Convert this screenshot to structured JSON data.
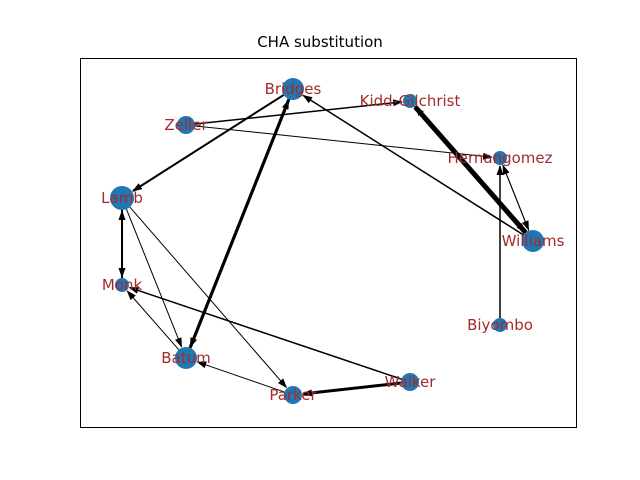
{
  "title": "CHA substitution",
  "colors": {
    "node": "#1f77b4",
    "label": "#a52a2a",
    "edge": "#000000",
    "frame": "#000000"
  },
  "nodes": [
    {
      "id": "Bridges",
      "label": "Bridges"
    },
    {
      "id": "Kidd-Gilchrist",
      "label": "Kidd-Gilchrist"
    },
    {
      "id": "Zeller",
      "label": "Zeller"
    },
    {
      "id": "Hernangomez",
      "label": "Hernangomez"
    },
    {
      "id": "Lamb",
      "label": "Lamb"
    },
    {
      "id": "Williams",
      "label": "Williams"
    },
    {
      "id": "Monk",
      "label": "Monk"
    },
    {
      "id": "Biyombo",
      "label": "Biyombo"
    },
    {
      "id": "Batum",
      "label": "Batum"
    },
    {
      "id": "Walker",
      "label": "Walker"
    },
    {
      "id": "Parker",
      "label": "Parker"
    }
  ],
  "edges": [
    {
      "source": "Williams",
      "target": "Kidd-Gilchrist",
      "weight": 5
    },
    {
      "source": "Bridges",
      "target": "Batum",
      "weight": 3
    },
    {
      "source": "Batum",
      "target": "Bridges",
      "weight": 3
    },
    {
      "source": "Walker",
      "target": "Parker",
      "weight": 3
    },
    {
      "source": "Bridges",
      "target": "Lamb",
      "weight": 2
    },
    {
      "source": "Lamb",
      "target": "Monk",
      "weight": 2
    },
    {
      "source": "Monk",
      "target": "Lamb",
      "weight": 2
    },
    {
      "source": "Zeller",
      "target": "Kidd-Gilchrist",
      "weight": 1.5
    },
    {
      "source": "Zeller",
      "target": "Hernangomez",
      "weight": 1
    },
    {
      "source": "Williams",
      "target": "Bridges",
      "weight": 1.5
    },
    {
      "source": "Kidd-Gilchrist",
      "target": "Williams",
      "weight": 1.5
    },
    {
      "source": "Williams",
      "target": "Hernangomez",
      "weight": 1
    },
    {
      "source": "Hernangomez",
      "target": "Williams",
      "weight": 1
    },
    {
      "source": "Biyombo",
      "target": "Hernangomez",
      "weight": 1.5
    },
    {
      "source": "Lamb",
      "target": "Batum",
      "weight": 1
    },
    {
      "source": "Lamb",
      "target": "Parker",
      "weight": 1
    },
    {
      "source": "Batum",
      "target": "Monk",
      "weight": 1
    },
    {
      "source": "Walker",
      "target": "Monk",
      "weight": 1.5
    },
    {
      "source": "Parker",
      "target": "Batum",
      "weight": 1
    }
  ]
}
